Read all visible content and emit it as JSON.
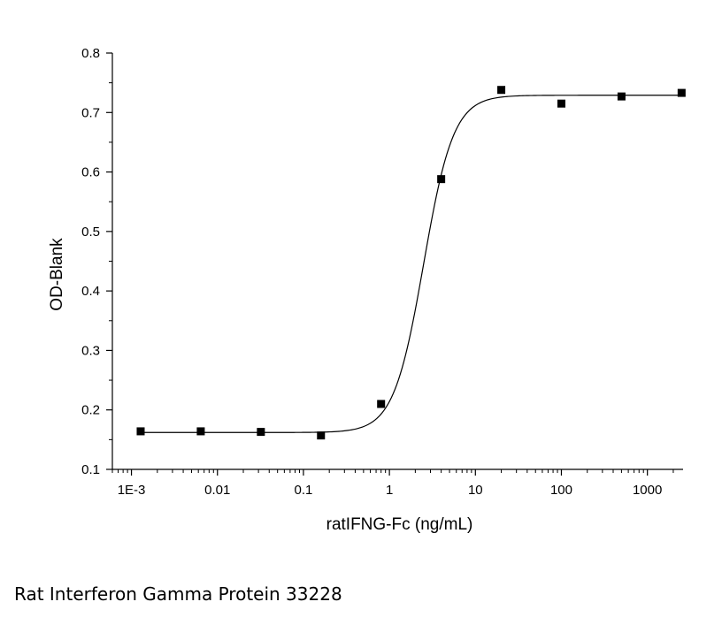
{
  "chart_data": {
    "type": "scatter",
    "xlabel": "ratIFNG-Fc (ng/mL)",
    "ylabel": "OD-Blank",
    "xscale": "log",
    "xlim": [
      0.0006,
      2600
    ],
    "ylim": [
      0.1,
      0.8
    ],
    "xticks": [
      {
        "value": 0.001,
        "label": "1E-3"
      },
      {
        "value": 0.01,
        "label": "0.01"
      },
      {
        "value": 0.1,
        "label": "0.1"
      },
      {
        "value": 1,
        "label": "1"
      },
      {
        "value": 10,
        "label": "10"
      },
      {
        "value": 100,
        "label": "100"
      },
      {
        "value": 1000,
        "label": "1000"
      }
    ],
    "yticks": [
      {
        "value": 0.1,
        "label": "0.1"
      },
      {
        "value": 0.2,
        "label": "0.2"
      },
      {
        "value": 0.3,
        "label": "0.3"
      },
      {
        "value": 0.4,
        "label": "0.4"
      },
      {
        "value": 0.5,
        "label": "0.5"
      },
      {
        "value": 0.6,
        "label": "0.6"
      },
      {
        "value": 0.7,
        "label": "0.7"
      },
      {
        "value": 0.8,
        "label": "0.8"
      }
    ],
    "grid": false,
    "series": [
      {
        "marker": "square",
        "color": "#000000",
        "points": [
          {
            "x": 0.00128,
            "y": 0.164
          },
          {
            "x": 0.0064,
            "y": 0.164
          },
          {
            "x": 0.032,
            "y": 0.163
          },
          {
            "x": 0.16,
            "y": 0.157
          },
          {
            "x": 0.8,
            "y": 0.21
          },
          {
            "x": 4,
            "y": 0.588
          },
          {
            "x": 20,
            "y": 0.738
          },
          {
            "x": 100,
            "y": 0.715
          },
          {
            "x": 500,
            "y": 0.727
          },
          {
            "x": 2500,
            "y": 0.733
          }
        ],
        "fit": {
          "model": "4PL",
          "bottom": 0.162,
          "top": 0.729,
          "ec50": 2.5,
          "hill": 2.5
        }
      }
    ]
  },
  "caption": "Rat Interferon Gamma Protein 33228"
}
